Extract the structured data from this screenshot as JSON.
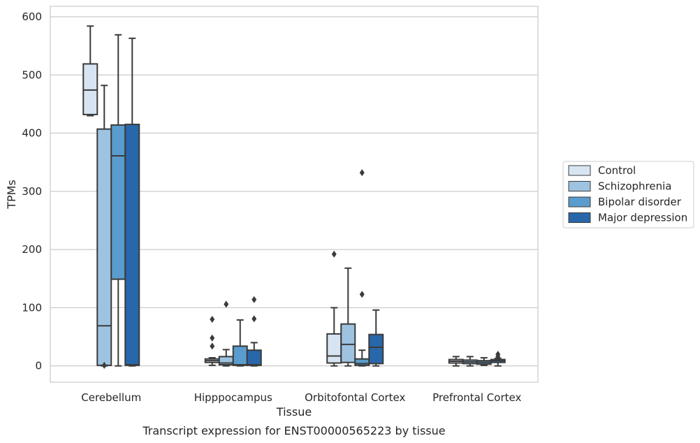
{
  "caption": "Transcript expression for ENST00000565223 by tissue",
  "chart_data": {
    "type": "box",
    "xlabel": "Tissue",
    "ylabel": "TPMs",
    "ylim": [
      -28,
      618
    ],
    "yticks": [
      0,
      100,
      200,
      300,
      400,
      500,
      600
    ],
    "grid": "horizontal",
    "legend_position": "right",
    "categories": [
      "Cerebellum",
      "Hipppocampus",
      "Orbitofontal Cortex",
      "Prefrontal Cortex"
    ],
    "series": [
      {
        "name": "Control",
        "color": "#d7e5f3",
        "boxes": [
          {
            "whisker_low": 430,
            "q1": 432,
            "median": 474,
            "q3": 519,
            "whisker_high": 584,
            "outliers": []
          },
          {
            "whisker_low": 1,
            "q1": 6,
            "median": 9,
            "q3": 12,
            "whisker_high": 14,
            "outliers": [
              34,
              48,
              80
            ]
          },
          {
            "whisker_low": 0,
            "q1": 5,
            "median": 17,
            "q3": 55,
            "whisker_high": 100,
            "outliers": [
              192
            ]
          },
          {
            "whisker_low": 0,
            "q1": 5,
            "median": 8,
            "q3": 11,
            "whisker_high": 16,
            "outliers": []
          }
        ]
      },
      {
        "name": "Schizophrenia",
        "color": "#9dc3e0",
        "boxes": [
          {
            "whisker_low": 0,
            "q1": 1,
            "median": 69,
            "q3": 407,
            "whisker_high": 482,
            "outliers": [
              1
            ]
          },
          {
            "whisker_low": 0,
            "q1": 2,
            "median": 5,
            "q3": 16,
            "whisker_high": 28,
            "outliers": [
              106
            ]
          },
          {
            "whisker_low": 0,
            "q1": 6,
            "median": 37,
            "q3": 72,
            "whisker_high": 168,
            "outliers": []
          },
          {
            "whisker_low": 0,
            "q1": 4,
            "median": 7,
            "q3": 10,
            "whisker_high": 16,
            "outliers": []
          }
        ]
      },
      {
        "name": "Bipolar disorder",
        "color": "#5a9ccd",
        "boxes": [
          {
            "whisker_low": 0,
            "q1": 149,
            "median": 361,
            "q3": 414,
            "whisker_high": 569,
            "outliers": []
          },
          {
            "whisker_low": 0,
            "q1": 1,
            "median": 2,
            "q3": 34,
            "whisker_high": 79,
            "outliers": []
          },
          {
            "whisker_low": 0,
            "q1": 1,
            "median": 4,
            "q3": 12,
            "whisker_high": 27,
            "outliers": [
              123,
              332
            ]
          },
          {
            "whisker_low": 1,
            "q1": 3,
            "median": 6,
            "q3": 9,
            "whisker_high": 14,
            "outliers": []
          }
        ]
      },
      {
        "name": "Major depression",
        "color": "#2867a9",
        "boxes": [
          {
            "whisker_low": 0,
            "q1": 1,
            "median": 2,
            "q3": 415,
            "whisker_high": 563,
            "outliers": []
          },
          {
            "whisker_low": 0,
            "q1": 1,
            "median": 2,
            "q3": 27,
            "whisker_high": 40,
            "outliers": [
              81,
              114
            ]
          },
          {
            "whisker_low": 0,
            "q1": 4,
            "median": 32,
            "q3": 54,
            "whisker_high": 96,
            "outliers": []
          },
          {
            "whisker_low": 0,
            "q1": 6,
            "median": 9,
            "q3": 11,
            "whisker_high": 13,
            "outliers": [
              16,
              20
            ]
          }
        ]
      }
    ]
  }
}
